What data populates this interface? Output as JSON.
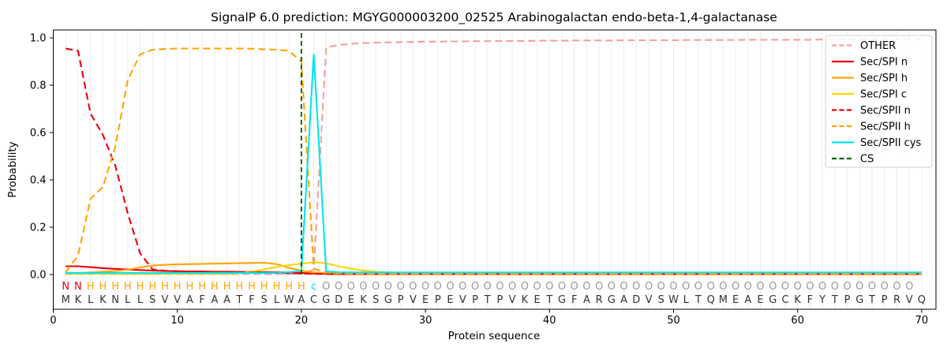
{
  "figure": {
    "title": "SignalP 6.0 prediction: MGYG000003200_02525 Arabinogalactan endo-beta-1,4-galactanase",
    "xlabel": "Protein sequence",
    "ylabel": "Probability"
  },
  "chart_data": {
    "type": "line",
    "title": "SignalP 6.0 prediction: MGYG000003200_02525 Arabinogalactan endo-beta-1,4-galactanase",
    "xlabel": "Protein sequence",
    "ylabel": "Probability",
    "xlim": [
      0,
      71
    ],
    "ylim": [
      -0.15,
      1.03
    ],
    "xticks": [
      0,
      10,
      20,
      30,
      40,
      50,
      60,
      70
    ],
    "yticks": [
      0.0,
      0.2,
      0.4,
      0.6,
      0.8,
      1.0
    ],
    "grid": "vertical line at every residue position, light gray",
    "legend_position": "upper right",
    "colors": {
      "other": "#f3a0a0",
      "red": "#e8000b",
      "orange": "#ffa502",
      "yellow": "#ffd400",
      "cyan": "#00e5f0",
      "green": "#006400",
      "grid": "#ececec",
      "sequence_text": "#333333",
      "other_letter": "#999999"
    },
    "series": [
      {
        "name": "OTHER",
        "color": "#f3a0a0",
        "dash": "dashed",
        "values": [
          0.002,
          0.002,
          0.002,
          0.002,
          0.002,
          0.002,
          0.002,
          0.002,
          0.002,
          0.002,
          0.002,
          0.002,
          0.002,
          0.002,
          0.002,
          0.002,
          0.002,
          0.002,
          0.002,
          0.004,
          0.02,
          0.96,
          0.97,
          0.975,
          0.978,
          0.98,
          0.981,
          0.982,
          0.983,
          0.984,
          0.984,
          0.985,
          0.985,
          0.986,
          0.986,
          0.987,
          0.987,
          0.987,
          0.988,
          0.988,
          0.988,
          0.989,
          0.989,
          0.989,
          0.989,
          0.99,
          0.99,
          0.99,
          0.99,
          0.99,
          0.991,
          0.991,
          0.991,
          0.991,
          0.991,
          0.992,
          0.992,
          0.992,
          0.992,
          0.992,
          0.992,
          0.993,
          0.993,
          0.993,
          0.993,
          0.993,
          0.993,
          0.993,
          0.993,
          0.993
        ]
      },
      {
        "name": "Sec/SPI n",
        "color": "#e8000b",
        "dash": "solid",
        "values": [
          0.035,
          0.035,
          0.031,
          0.027,
          0.024,
          0.021,
          0.019,
          0.017,
          0.015,
          0.014,
          0.013,
          0.013,
          0.012,
          0.012,
          0.011,
          0.011,
          0.01,
          0.01,
          0.009,
          0.007,
          0.004,
          0.003,
          0.002,
          0.002,
          0.002,
          0.002,
          0.002,
          0.002,
          0.002,
          0.002,
          0.002,
          0.002,
          0.002,
          0.002,
          0.002,
          0.002,
          0.002,
          0.002,
          0.002,
          0.002,
          0.002,
          0.002,
          0.002,
          0.002,
          0.002,
          0.002,
          0.002,
          0.002,
          0.002,
          0.002,
          0.002,
          0.002,
          0.002,
          0.002,
          0.002,
          0.002,
          0.002,
          0.002,
          0.002,
          0.002,
          0.002,
          0.002,
          0.002,
          0.002,
          0.002,
          0.002,
          0.002,
          0.002,
          0.002,
          0.002
        ]
      },
      {
        "name": "Sec/SPI h",
        "color": "#ffa502",
        "dash": "solid",
        "values": [
          0.004,
          0.006,
          0.009,
          0.012,
          0.015,
          0.02,
          0.03,
          0.038,
          0.041,
          0.043,
          0.044,
          0.045,
          0.046,
          0.047,
          0.048,
          0.049,
          0.05,
          0.044,
          0.028,
          0.016,
          0.009,
          0.006,
          0.004,
          0.004,
          0.003,
          0.003,
          0.003,
          0.003,
          0.003,
          0.003,
          0.003,
          0.003,
          0.003,
          0.003,
          0.003,
          0.003,
          0.003,
          0.003,
          0.003,
          0.003,
          0.003,
          0.003,
          0.003,
          0.003,
          0.003,
          0.003,
          0.003,
          0.003,
          0.003,
          0.003,
          0.003,
          0.003,
          0.003,
          0.003,
          0.003,
          0.003,
          0.003,
          0.003,
          0.003,
          0.003,
          0.003,
          0.003,
          0.003,
          0.003,
          0.003,
          0.003,
          0.003,
          0.003,
          0.003,
          0.003
        ]
      },
      {
        "name": "Sec/SPI c",
        "color": "#ffd400",
        "dash": "solid",
        "values": [
          0.003,
          0.003,
          0.003,
          0.003,
          0.003,
          0.003,
          0.003,
          0.003,
          0.003,
          0.003,
          0.003,
          0.003,
          0.003,
          0.003,
          0.006,
          0.012,
          0.022,
          0.032,
          0.04,
          0.046,
          0.052,
          0.048,
          0.035,
          0.025,
          0.017,
          0.012,
          0.009,
          0.007,
          0.006,
          0.005,
          0.004,
          0.004,
          0.004,
          0.004,
          0.004,
          0.004,
          0.004,
          0.004,
          0.004,
          0.004,
          0.004,
          0.004,
          0.004,
          0.004,
          0.004,
          0.004,
          0.004,
          0.004,
          0.004,
          0.004,
          0.004,
          0.004,
          0.004,
          0.004,
          0.004,
          0.004,
          0.004,
          0.004,
          0.004,
          0.004,
          0.004,
          0.004,
          0.004,
          0.004,
          0.004,
          0.004,
          0.004,
          0.004,
          0.004,
          0.004
        ]
      },
      {
        "name": "Sec/SPII n",
        "color": "#e8000b",
        "dash": "dashed",
        "values": [
          0.955,
          0.945,
          0.68,
          0.59,
          0.46,
          0.26,
          0.09,
          0.022,
          0.016,
          0.014,
          0.013,
          0.012,
          0.011,
          0.011,
          0.01,
          0.009,
          0.008,
          0.007,
          0.006,
          0.004,
          0.003,
          0.002,
          0.002,
          0.002,
          0.002,
          0.002,
          0.002,
          0.002,
          0.002,
          0.002,
          0.002,
          0.002,
          0.002,
          0.002,
          0.002,
          0.002,
          0.002,
          0.002,
          0.002,
          0.002,
          0.002,
          0.002,
          0.002,
          0.002,
          0.002,
          0.002,
          0.002,
          0.002,
          0.002,
          0.002,
          0.002,
          0.002,
          0.002,
          0.002,
          0.002,
          0.002,
          0.002,
          0.002,
          0.002,
          0.002,
          0.002,
          0.002,
          0.002,
          0.002,
          0.002,
          0.002,
          0.002,
          0.002,
          0.002,
          0.002
        ]
      },
      {
        "name": "Sec/SPII h",
        "color": "#ffa502",
        "dash": "dashed",
        "values": [
          0.01,
          0.08,
          0.32,
          0.37,
          0.54,
          0.82,
          0.93,
          0.95,
          0.953,
          0.955,
          0.955,
          0.955,
          0.955,
          0.955,
          0.955,
          0.954,
          0.952,
          0.95,
          0.945,
          0.9,
          0.025,
          0.008,
          0.005,
          0.003,
          0.003,
          0.003,
          0.003,
          0.003,
          0.003,
          0.003,
          0.003,
          0.003,
          0.003,
          0.003,
          0.003,
          0.003,
          0.003,
          0.003,
          0.003,
          0.003,
          0.003,
          0.003,
          0.003,
          0.003,
          0.003,
          0.003,
          0.003,
          0.003,
          0.003,
          0.003,
          0.003,
          0.003,
          0.003,
          0.003,
          0.003,
          0.003,
          0.003,
          0.003,
          0.003,
          0.003,
          0.003,
          0.003,
          0.003,
          0.003,
          0.003,
          0.003,
          0.003,
          0.003,
          0.003,
          0.003
        ]
      },
      {
        "name": "Sec/SPII cys",
        "color": "#00e5f0",
        "dash": "solid",
        "values": [
          0.007,
          0.007,
          0.007,
          0.007,
          0.007,
          0.007,
          0.007,
          0.007,
          0.007,
          0.007,
          0.007,
          0.007,
          0.007,
          0.007,
          0.007,
          0.007,
          0.007,
          0.008,
          0.01,
          0.015,
          0.93,
          0.013,
          0.01,
          0.009,
          0.009,
          0.009,
          0.009,
          0.009,
          0.009,
          0.009,
          0.009,
          0.009,
          0.009,
          0.009,
          0.009,
          0.009,
          0.009,
          0.009,
          0.009,
          0.009,
          0.009,
          0.009,
          0.009,
          0.009,
          0.009,
          0.009,
          0.009,
          0.009,
          0.009,
          0.009,
          0.009,
          0.009,
          0.009,
          0.009,
          0.009,
          0.009,
          0.009,
          0.009,
          0.009,
          0.009,
          0.009,
          0.009,
          0.009,
          0.009,
          0.009,
          0.009,
          0.009,
          0.009,
          0.009,
          0.009
        ]
      },
      {
        "name": "CS",
        "color": "#006400",
        "dash": "dashed",
        "type": "vline",
        "x": 20
      }
    ],
    "annotation_row": "NNHHHHHHHHHHHHHHHHHHcOOOOOOOOOOOOOOOOOOOOOOOOOOOOOOOOOOOOOOOOOOOOOOOO",
    "sequence_row": "MKLKNLLSVVAFAATFSLWACGDEKSGPVEPEVPTPVKETGFARGADVSWLTQMEAEGCKFYTPGTPRVQ",
    "annotation_colors": {
      "N": "#e8000b",
      "H": "#ffa502",
      "c": "#00e5f0",
      "O": "#999999"
    }
  }
}
